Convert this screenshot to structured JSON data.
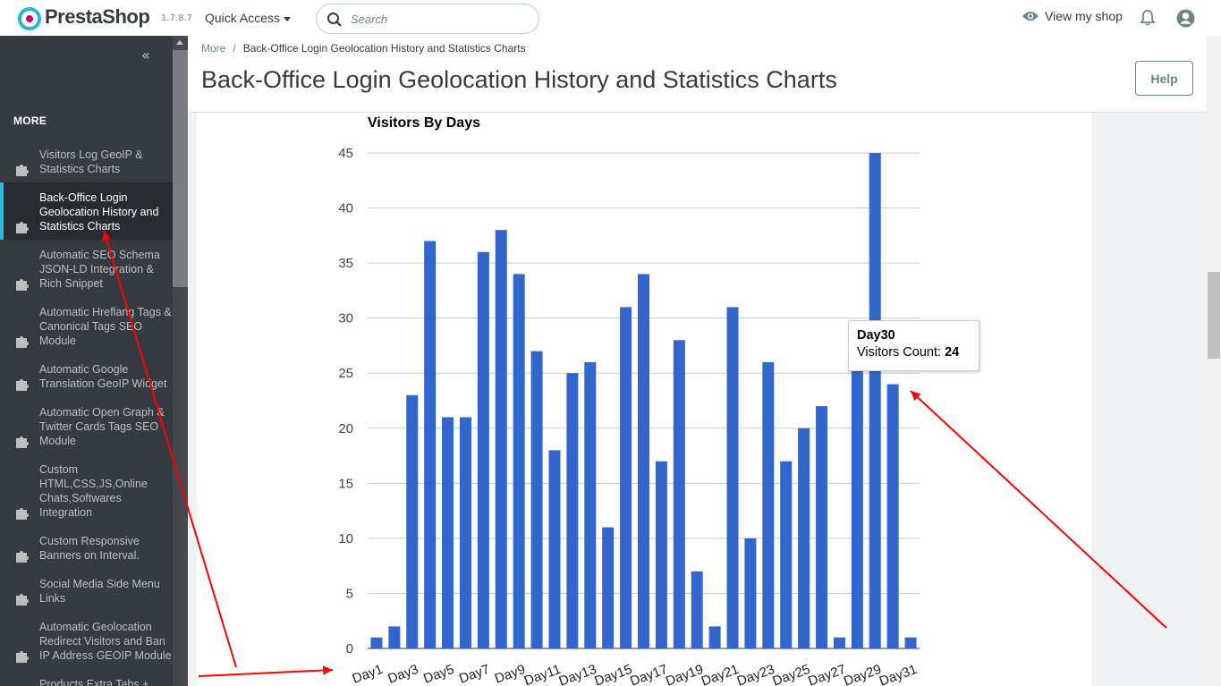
{
  "app": {
    "brand": "PrestaShop",
    "version": "1.7.8.7",
    "quick_access": "Quick Access",
    "search_placeholder": "Search",
    "view_shop": "View my shop"
  },
  "sidebar": {
    "section_title": "MORE",
    "items": [
      {
        "label": "Visitors Log GeoIP & Statistics Charts",
        "active": false
      },
      {
        "label": "Back-Office Login Geolocation History and Statistics Charts",
        "active": true
      },
      {
        "label": "Automatic SEO Schema JSON-LD Integration & Rich Snippet",
        "active": false
      },
      {
        "label": "Automatic Hreflang Tags & Canonical Tags SEO Module",
        "active": false
      },
      {
        "label": "Automatic Google Translation GeoIP Widget",
        "active": false
      },
      {
        "label": "Automatic Open Graph & Twitter Cards Tags SEO Module",
        "active": false
      },
      {
        "label": "Custom HTML,CSS,JS,Online Chats,Softwares Integration",
        "active": false
      },
      {
        "label": "Custom Responsive Banners on Interval.",
        "active": false
      },
      {
        "label": "Social Media Side Menu Links",
        "active": false
      },
      {
        "label": "Automatic Geolocation Redirect Visitors and Ban IP Address GEOIP Module",
        "active": false
      },
      {
        "label": "Products Extra Tabs +",
        "active": false
      }
    ]
  },
  "breadcrumb": {
    "parent": "More",
    "current": "Back-Office Login Geolocation History and Statistics Charts"
  },
  "page": {
    "title": "Back-Office Login Geolocation History and Statistics Charts",
    "help_label": "Help"
  },
  "tooltip": {
    "title": "Day30",
    "label": "Visitors Count:",
    "value": "24"
  },
  "colors": {
    "bar": "#3366cc",
    "accent": "#25b9d7",
    "annotation_arrow": "#ff0000"
  },
  "chart_data": {
    "type": "bar",
    "title": "Visitors By Days",
    "xlabel": "",
    "ylabel": "",
    "ylim": [
      0,
      45
    ],
    "yticks": [
      0,
      5,
      10,
      15,
      20,
      25,
      30,
      35,
      40,
      45
    ],
    "grid": true,
    "categories": [
      "Day1",
      "Day2",
      "Day3",
      "Day4",
      "Day5",
      "Day6",
      "Day7",
      "Day8",
      "Day9",
      "Day10",
      "Day11",
      "Day12",
      "Day13",
      "Day14",
      "Day15",
      "Day16",
      "Day17",
      "Day18",
      "Day19",
      "Day20",
      "Day21",
      "Day22",
      "Day23",
      "Day24",
      "Day25",
      "Day26",
      "Day27",
      "Day28",
      "Day29",
      "Day30",
      "Day31"
    ],
    "visible_tick_labels": [
      "Day1",
      "Day3",
      "Day5",
      "Day7",
      "Day9",
      "Day11",
      "Day13",
      "Day15",
      "Day17",
      "Day19",
      "Day21",
      "Day23",
      "Day25",
      "Day27",
      "Day29",
      "Day31"
    ],
    "series": [
      {
        "name": "Visitors Count",
        "values": [
          1,
          2,
          23,
          37,
          21,
          21,
          36,
          38,
          34,
          27,
          18,
          25,
          26,
          11,
          31,
          34,
          17,
          28,
          7,
          2,
          31,
          10,
          26,
          17,
          20,
          22,
          1,
          26,
          45,
          24,
          1
        ]
      }
    ]
  }
}
